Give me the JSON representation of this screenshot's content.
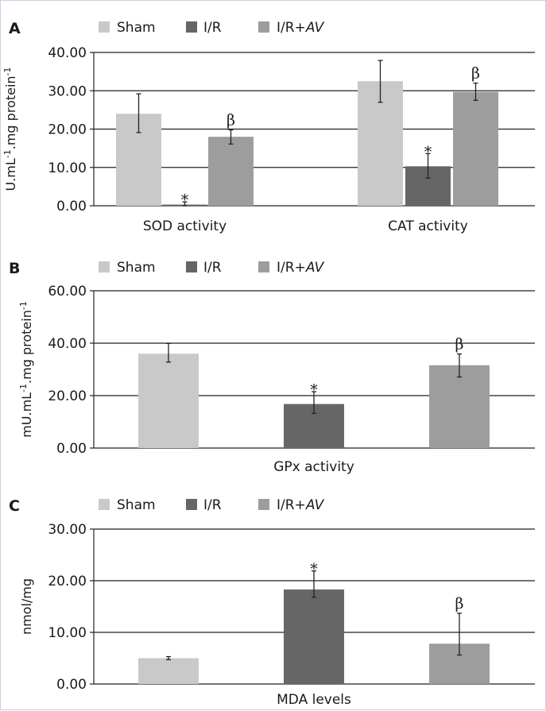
{
  "chart_data": [
    {
      "panel": "A",
      "type": "bar",
      "legend": [
        "Sham",
        "I/R",
        "I/R+AV"
      ],
      "ylabel": "U.mL-1.mg protein-1",
      "yticks": [
        "0.00",
        "10.00",
        "20.00",
        "30.00",
        "40.00"
      ],
      "ylim": [
        0,
        40
      ],
      "categories": [
        "SOD activity",
        "CAT activity"
      ],
      "series": [
        {
          "name": "Sham",
          "values": [
            24.0,
            32.5
          ],
          "err_lo": [
            19.1,
            27.0
          ],
          "err_hi": [
            29.2,
            37.9
          ],
          "marks": [
            "",
            ""
          ]
        },
        {
          "name": "I/R",
          "values": [
            0.3,
            10.3
          ],
          "err_lo": [
            0.0,
            7.2
          ],
          "err_hi": [
            1.0,
            13.6
          ],
          "marks": [
            "*",
            "*"
          ]
        },
        {
          "name": "I/R+AV",
          "values": [
            18.0,
            29.7
          ],
          "err_lo": [
            16.1,
            27.5
          ],
          "err_hi": [
            19.8,
            32.0
          ],
          "marks": [
            "β",
            "β"
          ]
        }
      ],
      "grid": true
    },
    {
      "panel": "B",
      "type": "bar",
      "legend": [
        "Sham",
        "I/R",
        "I/R+AV"
      ],
      "ylabel": "mU.mL-1.mg protein-1",
      "yticks": [
        "0.00",
        "20.00",
        "40.00",
        "60.00"
      ],
      "ylim": [
        0,
        60
      ],
      "categories": [
        "GPx activity"
      ],
      "series": [
        {
          "name": "Sham",
          "values": [
            36.0
          ],
          "err_lo": [
            32.8
          ],
          "err_hi": [
            39.9
          ],
          "marks": [
            ""
          ]
        },
        {
          "name": "I/R",
          "values": [
            16.8
          ],
          "err_lo": [
            13.2
          ],
          "err_hi": [
            21.5
          ],
          "marks": [
            "*"
          ]
        },
        {
          "name": "I/R+AV",
          "values": [
            31.6
          ],
          "err_lo": [
            27.1
          ],
          "err_hi": [
            35.9
          ],
          "marks": [
            "β"
          ]
        }
      ],
      "grid": true
    },
    {
      "panel": "C",
      "type": "bar",
      "legend": [
        "Sham",
        "I/R",
        "I/R+AV"
      ],
      "ylabel": "nmol/mg",
      "yticks": [
        "0.00",
        "10.00",
        "20.00",
        "30.00"
      ],
      "ylim": [
        0,
        30
      ],
      "categories": [
        "MDA levels"
      ],
      "series": [
        {
          "name": "Sham",
          "values": [
            5.0
          ],
          "err_lo": [
            4.7
          ],
          "err_hi": [
            5.3
          ],
          "marks": [
            ""
          ]
        },
        {
          "name": "I/R",
          "values": [
            18.3
          ],
          "err_lo": [
            16.8
          ],
          "err_hi": [
            21.9
          ],
          "marks": [
            "*"
          ]
        },
        {
          "name": "I/R+AV",
          "values": [
            7.8
          ],
          "err_lo": [
            5.6
          ],
          "err_hi": [
            13.7
          ],
          "marks": [
            "β"
          ]
        }
      ],
      "grid": true
    }
  ],
  "colors": {
    "Sham": "#c9c9c9",
    "I/R": "#666666",
    "I/R+AV": "#9d9d9d"
  }
}
